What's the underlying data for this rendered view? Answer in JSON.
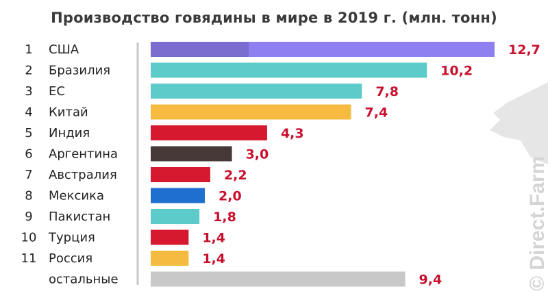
{
  "chart_data": {
    "type": "bar",
    "orientation": "horizontal",
    "title": "Производство говядины в мире в 2019 г. (млн. тонн)",
    "ranks": [
      "1",
      "2",
      "3",
      "4",
      "5",
      "6",
      "7",
      "8",
      "9",
      "10",
      "11",
      ""
    ],
    "categories": [
      "США",
      "Бразилия",
      "ЕС",
      "Китай",
      "Индия",
      "Аргентина",
      "Австралия",
      "Мексика",
      "Пакистан",
      "Турция",
      "Россия",
      "остальные"
    ],
    "values": [
      12.7,
      10.2,
      7.8,
      7.4,
      4.3,
      3.0,
      2.2,
      2.0,
      1.8,
      1.4,
      1.4,
      9.4
    ],
    "labels": [
      "12,7",
      "10,2",
      "7,8",
      "7,4",
      "4,3",
      "3,0",
      "2,2",
      "2,0",
      "1,8",
      "1,4",
      "1,4",
      "9,4"
    ],
    "colors": [
      "#8f80f2",
      "#5ecbcb",
      "#5ecbcb",
      "#f4bb40",
      "#d7192f",
      "#453837",
      "#d7192f",
      "#1f6fd1",
      "#5ecbcb",
      "#d7192f",
      "#f4bb40",
      "#c8c8c8"
    ],
    "first_bar_dark_color": "#7a6ccf",
    "value_label_color": "#c8102e",
    "grid": false,
    "legend": "none"
  },
  "watermark": "© Direct.Farm"
}
